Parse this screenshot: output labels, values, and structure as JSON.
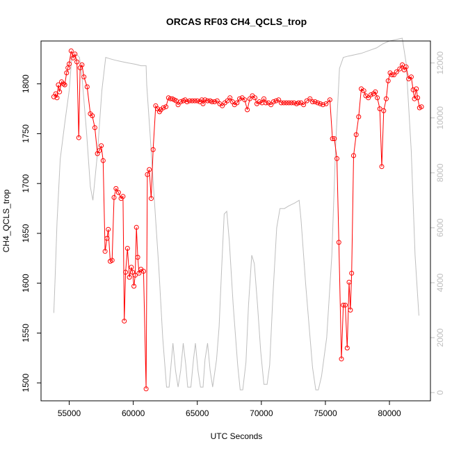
{
  "chart_data": {
    "type": "line",
    "title": "ORCAS RF03 CH4_QCLS_trop",
    "xlabel": "UTC Seconds",
    "ylabel": "CH4_QCLS_trop",
    "xlim": [
      52800,
      83200
    ],
    "ylim": [
      1482,
      1843
    ],
    "y2lim": [
      -300,
      12800
    ],
    "x_ticks": [
      55000,
      60000,
      65000,
      70000,
      75000,
      80000
    ],
    "y_ticks": [
      1500,
      1550,
      1600,
      1650,
      1700,
      1750,
      1800
    ],
    "y2_ticks": [
      0,
      2000,
      4000,
      6000,
      8000,
      10000,
      12000
    ],
    "grid": false,
    "colors": {
      "ch4": "#ff0000",
      "altitude": "#bebebe",
      "axis": "#000000"
    },
    "series": [
      {
        "axis": "left",
        "style": "line+points",
        "color": "#ff0000",
        "points": [
          [
            53800,
            1787
          ],
          [
            53950,
            1790
          ],
          [
            54050,
            1786
          ],
          [
            54150,
            1799
          ],
          [
            54250,
            1792
          ],
          [
            54400,
            1802
          ],
          [
            54550,
            1800
          ],
          [
            54650,
            1799
          ],
          [
            54800,
            1811
          ],
          [
            54900,
            1816
          ],
          [
            55000,
            1820
          ],
          [
            55150,
            1833
          ],
          [
            55300,
            1826
          ],
          [
            55450,
            1830
          ],
          [
            55600,
            1822
          ],
          [
            55750,
            1746
          ],
          [
            55850,
            1816
          ],
          [
            56000,
            1819
          ],
          [
            56150,
            1807
          ],
          [
            56400,
            1797
          ],
          [
            56650,
            1770
          ],
          [
            56800,
            1768
          ],
          [
            57000,
            1756
          ],
          [
            57200,
            1730
          ],
          [
            57350,
            1733
          ],
          [
            57500,
            1738
          ],
          [
            57650,
            1723
          ],
          [
            57800,
            1632
          ],
          [
            57950,
            1645
          ],
          [
            58050,
            1654
          ],
          [
            58200,
            1622
          ],
          [
            58350,
            1623
          ],
          [
            58500,
            1686
          ],
          [
            58650,
            1695
          ],
          [
            58850,
            1691
          ],
          [
            59050,
            1685
          ],
          [
            59200,
            1687
          ],
          [
            59300,
            1562
          ],
          [
            59400,
            1611
          ],
          [
            59550,
            1635
          ],
          [
            59700,
            1606
          ],
          [
            59850,
            1616
          ],
          [
            59950,
            1611
          ],
          [
            60050,
            1597
          ],
          [
            60150,
            1608
          ],
          [
            60250,
            1656
          ],
          [
            60350,
            1626
          ],
          [
            60450,
            1610
          ],
          [
            60600,
            1614
          ],
          [
            60800,
            1612
          ],
          [
            61000,
            1494
          ],
          [
            61100,
            1709
          ],
          [
            61250,
            1714
          ],
          [
            61400,
            1685
          ],
          [
            61550,
            1734
          ],
          [
            61750,
            1778
          ],
          [
            61900,
            1775
          ],
          [
            62050,
            1772
          ],
          [
            62150,
            1774
          ],
          [
            62350,
            1776
          ],
          [
            62550,
            1777
          ],
          [
            62750,
            1786
          ],
          [
            62900,
            1785
          ],
          [
            63050,
            1785
          ],
          [
            63200,
            1784
          ],
          [
            63350,
            1783
          ],
          [
            63500,
            1779
          ],
          [
            63700,
            1782
          ],
          [
            63900,
            1783
          ],
          [
            64050,
            1784
          ],
          [
            64200,
            1782
          ],
          [
            64400,
            1783
          ],
          [
            64600,
            1783
          ],
          [
            64800,
            1783
          ],
          [
            65000,
            1783
          ],
          [
            65200,
            1782
          ],
          [
            65350,
            1784
          ],
          [
            65450,
            1780
          ],
          [
            65600,
            1784
          ],
          [
            65800,
            1783
          ],
          [
            66000,
            1783
          ],
          [
            66150,
            1782
          ],
          [
            66350,
            1782
          ],
          [
            66550,
            1783
          ],
          [
            66750,
            1780
          ],
          [
            66950,
            1778
          ],
          [
            67150,
            1781
          ],
          [
            67350,
            1783
          ],
          [
            67550,
            1786
          ],
          [
            67750,
            1782
          ],
          [
            67900,
            1779
          ],
          [
            68100,
            1781
          ],
          [
            68300,
            1785
          ],
          [
            68500,
            1786
          ],
          [
            68700,
            1784
          ],
          [
            68900,
            1774
          ],
          [
            69100,
            1785
          ],
          [
            69300,
            1788
          ],
          [
            69500,
            1786
          ],
          [
            69650,
            1780
          ],
          [
            69850,
            1782
          ],
          [
            70050,
            1781
          ],
          [
            70200,
            1785
          ],
          [
            70350,
            1781
          ],
          [
            70550,
            1781
          ],
          [
            70750,
            1779
          ],
          [
            70950,
            1782
          ],
          [
            71150,
            1783
          ],
          [
            71350,
            1784
          ],
          [
            71550,
            1781
          ],
          [
            71750,
            1781
          ],
          [
            71950,
            1781
          ],
          [
            72150,
            1781
          ],
          [
            72350,
            1781
          ],
          [
            72550,
            1781
          ],
          [
            72750,
            1780
          ],
          [
            72900,
            1781
          ],
          [
            73100,
            1781
          ],
          [
            73300,
            1779
          ],
          [
            73550,
            1783
          ],
          [
            73800,
            1785
          ],
          [
            74000,
            1782
          ],
          [
            74200,
            1782
          ],
          [
            74400,
            1781
          ],
          [
            74600,
            1780
          ],
          [
            74800,
            1779
          ],
          [
            75050,
            1780
          ],
          [
            75350,
            1784
          ],
          [
            75550,
            1745
          ],
          [
            75700,
            1745
          ],
          [
            75900,
            1725
          ],
          [
            76050,
            1641
          ],
          [
            76250,
            1524
          ],
          [
            76400,
            1578
          ],
          [
            76550,
            1578
          ],
          [
            76700,
            1535
          ],
          [
            76850,
            1601
          ],
          [
            76950,
            1573
          ],
          [
            77050,
            1610
          ],
          [
            77200,
            1728
          ],
          [
            77400,
            1749
          ],
          [
            77600,
            1767
          ],
          [
            77800,
            1795
          ],
          [
            78000,
            1793
          ],
          [
            78150,
            1788
          ],
          [
            78350,
            1786
          ],
          [
            78550,
            1789
          ],
          [
            78750,
            1790
          ],
          [
            78900,
            1792
          ],
          [
            79050,
            1786
          ],
          [
            79250,
            1775
          ],
          [
            79400,
            1717
          ],
          [
            79550,
            1773
          ],
          [
            79750,
            1785
          ],
          [
            79900,
            1803
          ],
          [
            80050,
            1811
          ],
          [
            80200,
            1809
          ],
          [
            80350,
            1809
          ],
          [
            80550,
            1812
          ],
          [
            80800,
            1815
          ],
          [
            81000,
            1819
          ],
          [
            81150,
            1814
          ],
          [
            81300,
            1817
          ],
          [
            81500,
            1805
          ],
          [
            81700,
            1807
          ],
          [
            81850,
            1794
          ],
          [
            81950,
            1785
          ],
          [
            82100,
            1795
          ],
          [
            82200,
            1786
          ],
          [
            82350,
            1776
          ],
          [
            82500,
            1777
          ]
        ]
      },
      {
        "axis": "right",
        "style": "line",
        "color": "#bebebe",
        "points": [
          [
            53800,
            2900
          ],
          [
            53900,
            4200
          ],
          [
            54050,
            6200
          ],
          [
            54300,
            8500
          ],
          [
            54650,
            9800
          ],
          [
            55000,
            11000
          ],
          [
            55200,
            12200
          ],
          [
            55600,
            12300
          ],
          [
            55800,
            12200
          ],
          [
            56000,
            11500
          ],
          [
            56350,
            9500
          ],
          [
            56650,
            7500
          ],
          [
            56850,
            7000
          ],
          [
            57200,
            8700
          ],
          [
            57550,
            11000
          ],
          [
            57850,
            12200
          ],
          [
            58200,
            12150
          ],
          [
            58600,
            12100
          ],
          [
            59100,
            12050
          ],
          [
            59600,
            12000
          ],
          [
            60200,
            11950
          ],
          [
            60600,
            11900
          ],
          [
            61000,
            11900
          ],
          [
            61050,
            11200
          ],
          [
            61300,
            9500
          ],
          [
            61650,
            7000
          ],
          [
            62000,
            4500
          ],
          [
            62300,
            2000
          ],
          [
            62600,
            200
          ],
          [
            62800,
            200
          ],
          [
            63100,
            1800
          ],
          [
            63300,
            800
          ],
          [
            63500,
            200
          ],
          [
            63700,
            800
          ],
          [
            63900,
            1800
          ],
          [
            64100,
            1000
          ],
          [
            64250,
            200
          ],
          [
            64500,
            200
          ],
          [
            64700,
            1200
          ],
          [
            64850,
            1800
          ],
          [
            65050,
            800
          ],
          [
            65250,
            200
          ],
          [
            65450,
            200
          ],
          [
            65600,
            1200
          ],
          [
            65800,
            1800
          ],
          [
            66000,
            800
          ],
          [
            66200,
            200
          ],
          [
            66500,
            1200
          ],
          [
            66700,
            2400
          ],
          [
            66900,
            4500
          ],
          [
            67100,
            6500
          ],
          [
            67300,
            6600
          ],
          [
            67500,
            5500
          ],
          [
            67800,
            3200
          ],
          [
            68150,
            1000
          ],
          [
            68350,
            100
          ],
          [
            68550,
            100
          ],
          [
            68800,
            1100
          ],
          [
            69000,
            3200
          ],
          [
            69250,
            5000
          ],
          [
            69450,
            4700
          ],
          [
            69700,
            3200
          ],
          [
            69950,
            1500
          ],
          [
            70200,
            300
          ],
          [
            70450,
            300
          ],
          [
            70650,
            1000
          ],
          [
            70900,
            3500
          ],
          [
            71200,
            6000
          ],
          [
            71450,
            6700
          ],
          [
            71800,
            6700
          ],
          [
            72150,
            6800
          ],
          [
            72600,
            6900
          ],
          [
            72950,
            7000
          ],
          [
            73100,
            6300
          ],
          [
            73450,
            4000
          ],
          [
            73750,
            2300
          ],
          [
            74000,
            900
          ],
          [
            74250,
            100
          ],
          [
            74450,
            100
          ],
          [
            74700,
            600
          ],
          [
            75100,
            2000
          ],
          [
            75500,
            5000
          ],
          [
            75800,
            9000
          ],
          [
            76100,
            11800
          ],
          [
            76400,
            12200
          ],
          [
            76800,
            12250
          ],
          [
            77300,
            12300
          ],
          [
            77800,
            12350
          ],
          [
            78400,
            12450
          ],
          [
            79000,
            12550
          ],
          [
            79500,
            12700
          ],
          [
            80000,
            12800
          ],
          [
            80500,
            12850
          ],
          [
            81000,
            12900
          ],
          [
            81300,
            12000
          ],
          [
            81700,
            8800
          ],
          [
            82000,
            5000
          ],
          [
            82300,
            2800
          ]
        ]
      }
    ]
  }
}
